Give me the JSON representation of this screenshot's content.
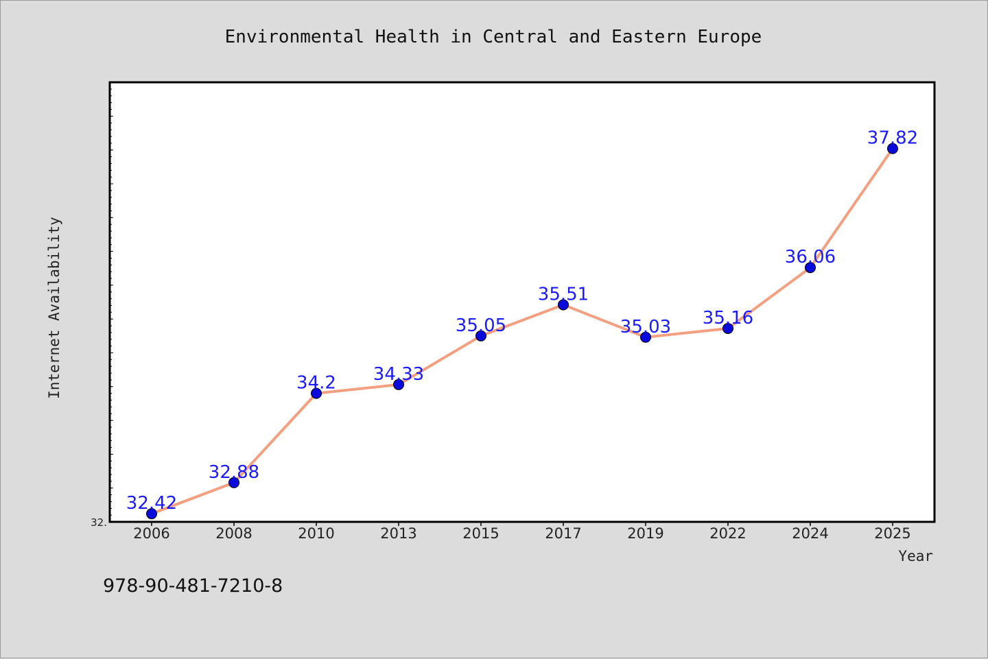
{
  "chart_data": {
    "type": "line",
    "title": "Environmental Health in Central and Eastern Europe",
    "xlabel": "Year",
    "ylabel": "Internet Availability",
    "categories": [
      "2006",
      "2008",
      "2010",
      "2013",
      "2015",
      "2017",
      "2019",
      "2022",
      "2024",
      "2025"
    ],
    "series": [
      {
        "values": [
          32.42,
          32.88,
          34.2,
          34.33,
          35.05,
          35.51,
          35.03,
          35.16,
          36.06,
          37.82
        ],
        "data_labels": [
          "32.42",
          "32.88",
          "34.2",
          "34.33",
          "35.05",
          "35.51",
          "35.03",
          "35.16",
          "36.06",
          "37.82"
        ]
      }
    ],
    "ylim": [
      32.3,
      38.8
    ],
    "y_tick_labels": [
      "32."
    ],
    "grid": false,
    "line_color": "#f4a080",
    "marker_color": "#0a0adc",
    "label_color": "#1a1aff"
  },
  "footer": {
    "isbn": "978-90-481-7210-8"
  }
}
